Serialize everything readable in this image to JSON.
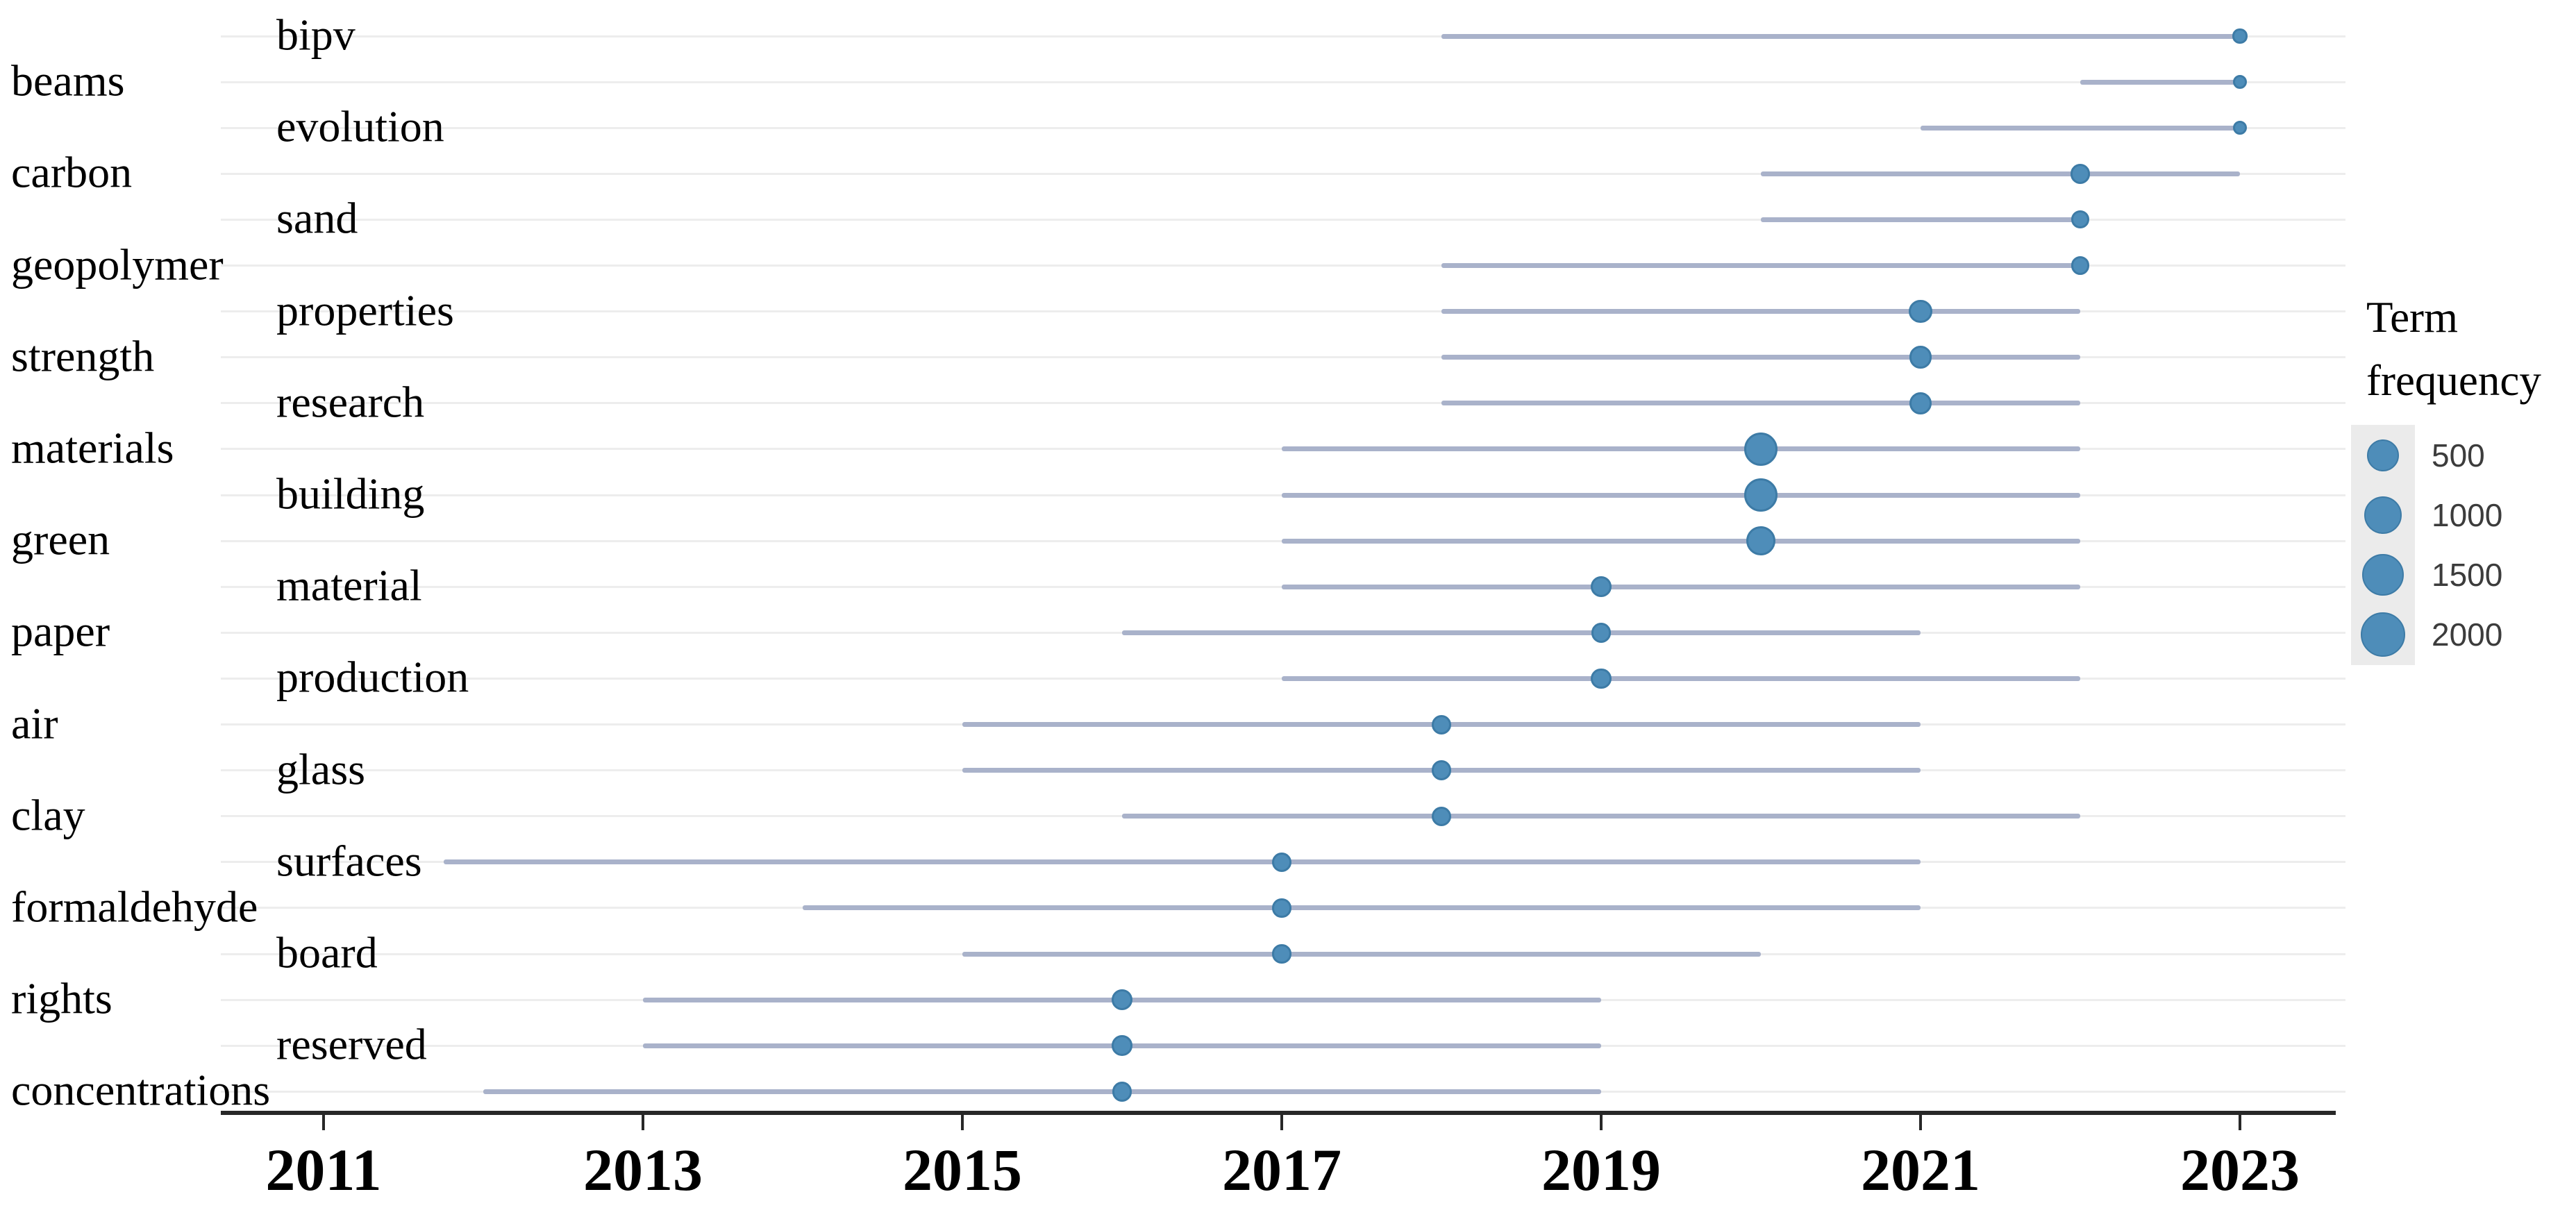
{
  "legend": {
    "title_lines": [
      "Term",
      "frequency"
    ],
    "items": [
      {
        "label": "500",
        "value": 500
      },
      {
        "label": "1000",
        "value": 1000
      },
      {
        "label": "1500",
        "value": 1500
      },
      {
        "label": "2000",
        "value": 2000
      }
    ]
  },
  "x_axis": {
    "tick_labels": [
      "2011",
      "2013",
      "2015",
      "2017",
      "2019",
      "2021",
      "2023"
    ]
  },
  "style": {
    "background": "#ffffff",
    "dot_fill": "#4e8db9",
    "dot_border": "#3d7ba6",
    "trend_line": "#a9b2ca",
    "gridline": "#ededed",
    "axis_line": "#282828",
    "term_text": "#000000",
    "tick_text": "#000000",
    "legend_value_text": "#3c3c3c",
    "legend_key_bg": "#ebebeb"
  },
  "chart_data": {
    "type": "scatter",
    "title": "",
    "xlabel": "",
    "ylabel": "",
    "description": "Trend-topics timeline: each term has a horizontal line from first to last year of relevance and a dot at its peak year, dot area proportional to term frequency.",
    "x_ticks": [
      2011,
      2013,
      2015,
      2017,
      2019,
      2021,
      2023
    ],
    "x_range": [
      2010.4,
      2023.7
    ],
    "grid": "horizontal-only",
    "legend_position": "right",
    "legend_title": "Term frequency",
    "legend_values": [
      500,
      1000,
      1500,
      2000
    ],
    "terms": [
      {
        "term": "bipv",
        "label_column": "indent",
        "year_start": 2018,
        "year_peak": 2023,
        "year_end": 2023,
        "frequency": 130
      },
      {
        "term": "beams",
        "label_column": "left",
        "year_start": 2022,
        "year_peak": 2023,
        "year_end": 2023,
        "frequency": 100
      },
      {
        "term": "evolution",
        "label_column": "indent",
        "year_start": 2021,
        "year_peak": 2023,
        "year_end": 2023,
        "frequency": 110
      },
      {
        "term": "carbon",
        "label_column": "left",
        "year_start": 2020,
        "year_peak": 2022,
        "year_end": 2023,
        "frequency": 450
      },
      {
        "term": "sand",
        "label_column": "indent",
        "year_start": 2020,
        "year_peak": 2022,
        "year_end": 2022,
        "frequency": 300
      },
      {
        "term": "geopolymer",
        "label_column": "left",
        "year_start": 2018,
        "year_peak": 2022,
        "year_end": 2022,
        "frequency": 350
      },
      {
        "term": "properties",
        "label_column": "indent",
        "year_start": 2018,
        "year_peak": 2021,
        "year_end": 2022,
        "frequency": 700
      },
      {
        "term": "strength",
        "label_column": "left",
        "year_start": 2018,
        "year_peak": 2021,
        "year_end": 2022,
        "frequency": 680
      },
      {
        "term": "research",
        "label_column": "indent",
        "year_start": 2018,
        "year_peak": 2021,
        "year_end": 2022,
        "frequency": 650
      },
      {
        "term": "materials",
        "label_column": "left",
        "year_start": 2017,
        "year_peak": 2020,
        "year_end": 2022,
        "frequency": 2100
      },
      {
        "term": "building",
        "label_column": "indent",
        "year_start": 2017,
        "year_peak": 2020,
        "year_end": 2022,
        "frequency": 2050
      },
      {
        "term": "green",
        "label_column": "left",
        "year_start": 2017,
        "year_peak": 2020,
        "year_end": 2022,
        "frequency": 1400
      },
      {
        "term": "material",
        "label_column": "indent",
        "year_start": 2017,
        "year_peak": 2019,
        "year_end": 2022,
        "frequency": 500
      },
      {
        "term": "paper",
        "label_column": "left",
        "year_start": 2016,
        "year_peak": 2019,
        "year_end": 2021,
        "frequency": 450
      },
      {
        "term": "production",
        "label_column": "indent",
        "year_start": 2017,
        "year_peak": 2019,
        "year_end": 2022,
        "frequency": 480
      },
      {
        "term": "air",
        "label_column": "left",
        "year_start": 2015,
        "year_peak": 2018,
        "year_end": 2021,
        "frequency": 400
      },
      {
        "term": "glass",
        "label_column": "indent",
        "year_start": 2015,
        "year_peak": 2018,
        "year_end": 2021,
        "frequency": 420
      },
      {
        "term": "clay",
        "label_column": "left",
        "year_start": 2016,
        "year_peak": 2018,
        "year_end": 2022,
        "frequency": 400
      },
      {
        "term": "surfaces",
        "label_column": "indent",
        "year_start": 2011.75,
        "year_peak": 2017,
        "year_end": 2021,
        "frequency": 400
      },
      {
        "term": "formaldehyde",
        "label_column": "left",
        "year_start": 2014,
        "year_peak": 2017,
        "year_end": 2021,
        "frequency": 380
      },
      {
        "term": "board",
        "label_column": "indent",
        "year_start": 2015,
        "year_peak": 2017,
        "year_end": 2020,
        "frequency": 360
      },
      {
        "term": "rights",
        "label_column": "left",
        "year_start": 2013,
        "year_peak": 2016,
        "year_end": 2019,
        "frequency": 500
      },
      {
        "term": "reserved",
        "label_column": "indent",
        "year_start": 2013,
        "year_peak": 2016,
        "year_end": 2019,
        "frequency": 480
      },
      {
        "term": "concentrations",
        "label_column": "left",
        "year_start": 2012,
        "year_peak": 2016,
        "year_end": 2019,
        "frequency": 450
      }
    ]
  }
}
